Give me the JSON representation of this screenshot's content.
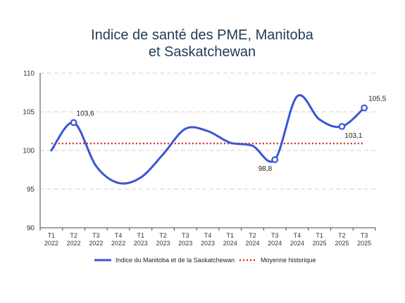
{
  "chart_data": {
    "type": "line",
    "title_lines": [
      "Indice de santé des PME, Manitoba",
      "et Saskatchewan"
    ],
    "categories": [
      [
        "T1",
        "2022"
      ],
      [
        "T2",
        "2022"
      ],
      [
        "T3",
        "2022"
      ],
      [
        "T4",
        "2022"
      ],
      [
        "T1",
        "2023"
      ],
      [
        "T2",
        "2023"
      ],
      [
        "T3",
        "2023"
      ],
      [
        "T4",
        "2023"
      ],
      [
        "T1",
        "2024"
      ],
      [
        "T2",
        "2024"
      ],
      [
        "T3",
        "2024"
      ],
      [
        "T4",
        "2024"
      ],
      [
        "T1",
        "2025"
      ],
      [
        "T2",
        "2025"
      ],
      [
        "T3",
        "2025"
      ]
    ],
    "ylim": [
      90,
      110
    ],
    "yticks": [
      "90",
      "95",
      "100",
      "105",
      "110"
    ],
    "grid": true,
    "legend_position": "bottom",
    "series": [
      {
        "name": "Indice du Manitoba et de la Saskatchewan",
        "color": "#3b55d4",
        "values": [
          100.0,
          103.6,
          98.0,
          95.8,
          96.5,
          99.5,
          102.8,
          102.5,
          101.0,
          100.6,
          98.8,
          107.0,
          104.0,
          103.1,
          105.5
        ]
      },
      {
        "name": "Moyenne historique",
        "color": "#d92b2b",
        "style": "dotted",
        "value": 100.9
      }
    ],
    "annotations": [
      {
        "index": 1,
        "label": "103,6"
      },
      {
        "index": 10,
        "label": "98,8"
      },
      {
        "index": 13,
        "label": "103,1"
      },
      {
        "index": 14,
        "label": "105,5"
      }
    ]
  }
}
